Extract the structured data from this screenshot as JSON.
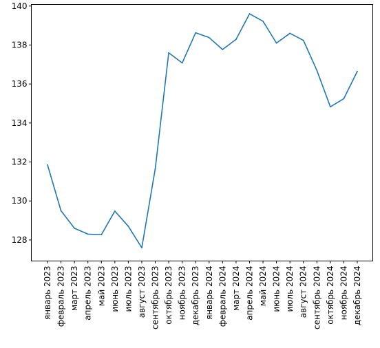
{
  "chart_data": {
    "type": "line",
    "title": "",
    "xlabel": "",
    "ylabel": "",
    "categories": [
      "январь 2023",
      "февраль 2023",
      "март 2023",
      "апрель 2023",
      "май 2023",
      "июнь 2023",
      "июль 2023",
      "август 2023",
      "сентябрь 2023",
      "октябрь 2023",
      "ноябрь 2023",
      "декабрь 2023",
      "январь 2024",
      "февраль 2024",
      "март 2024",
      "апрель 2024",
      "май 2024",
      "июнь 2024",
      "июль 2024",
      "август 2024",
      "сентябрь 2024",
      "октябрь 2024",
      "ноябрь 2024",
      "декабрь 2024"
    ],
    "series": [
      {
        "values": [
          131.85,
          129.5,
          128.6,
          128.3,
          128.27,
          129.48,
          128.7,
          127.6,
          131.65,
          137.6,
          137.08,
          138.63,
          138.38,
          137.77,
          138.29,
          139.6,
          139.22,
          138.1,
          138.6,
          138.24,
          136.7,
          134.83,
          135.25,
          136.65
        ],
        "color": "#1f77b4"
      }
    ],
    "ylim": [
      126.92,
      140.08
    ],
    "yticks": [
      "128",
      "130",
      "132",
      "134",
      "136",
      "138",
      "140"
    ],
    "grid": false,
    "legend": "none"
  }
}
